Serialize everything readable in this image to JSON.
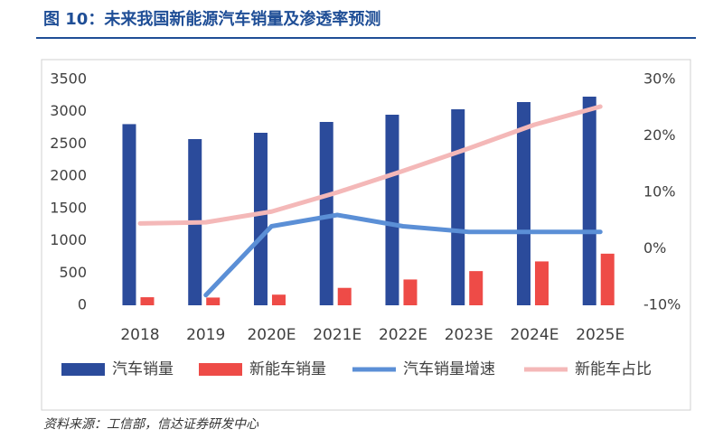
{
  "chart_data": {
    "type": "combo",
    "title": "图 10：未来我国新能源汽车销量及渗透率预测",
    "source": "资料来源：工信部，信达证券研发中心",
    "categories": [
      "2018",
      "2019",
      "2020E",
      "2021E",
      "2022E",
      "2023E",
      "2024E",
      "2025E"
    ],
    "series": [
      {
        "name": "汽车销量",
        "type": "bar",
        "color": "#2b4b9b",
        "values": [
          2808,
          2576,
          2674,
          2842,
          2954,
          3038,
          3150,
          3234
        ]
      },
      {
        "name": "新能车销量",
        "type": "bar",
        "color": "#ee4b47",
        "values": [
          125,
          120,
          165,
          270,
          400,
          530,
          680,
          800
        ]
      },
      {
        "name": "汽车销量增速",
        "type": "line",
        "axis": "y2",
        "color": "#5b8fd6",
        "values": [
          null,
          -8.2,
          4,
          6,
          4,
          3,
          3,
          3
        ]
      },
      {
        "name": "新能车占比",
        "type": "line",
        "axis": "y2",
        "color": "#f4b8b8",
        "values": [
          4.5,
          4.7,
          6.6,
          10,
          13.8,
          17.8,
          22,
          25.2
        ]
      }
    ],
    "ylim": [
      0,
      3500
    ],
    "yticks": [
      0,
      500,
      1000,
      1500,
      2000,
      2500,
      3000,
      3500
    ],
    "y2lim": [
      -10,
      30
    ],
    "y2ticks": [
      {
        "value": -10,
        "label": "-10%"
      },
      {
        "value": 0,
        "label": "0%"
      },
      {
        "value": 10,
        "label": "10%"
      },
      {
        "value": 20,
        "label": "20%"
      },
      {
        "value": 30,
        "label": "30%"
      }
    ]
  }
}
